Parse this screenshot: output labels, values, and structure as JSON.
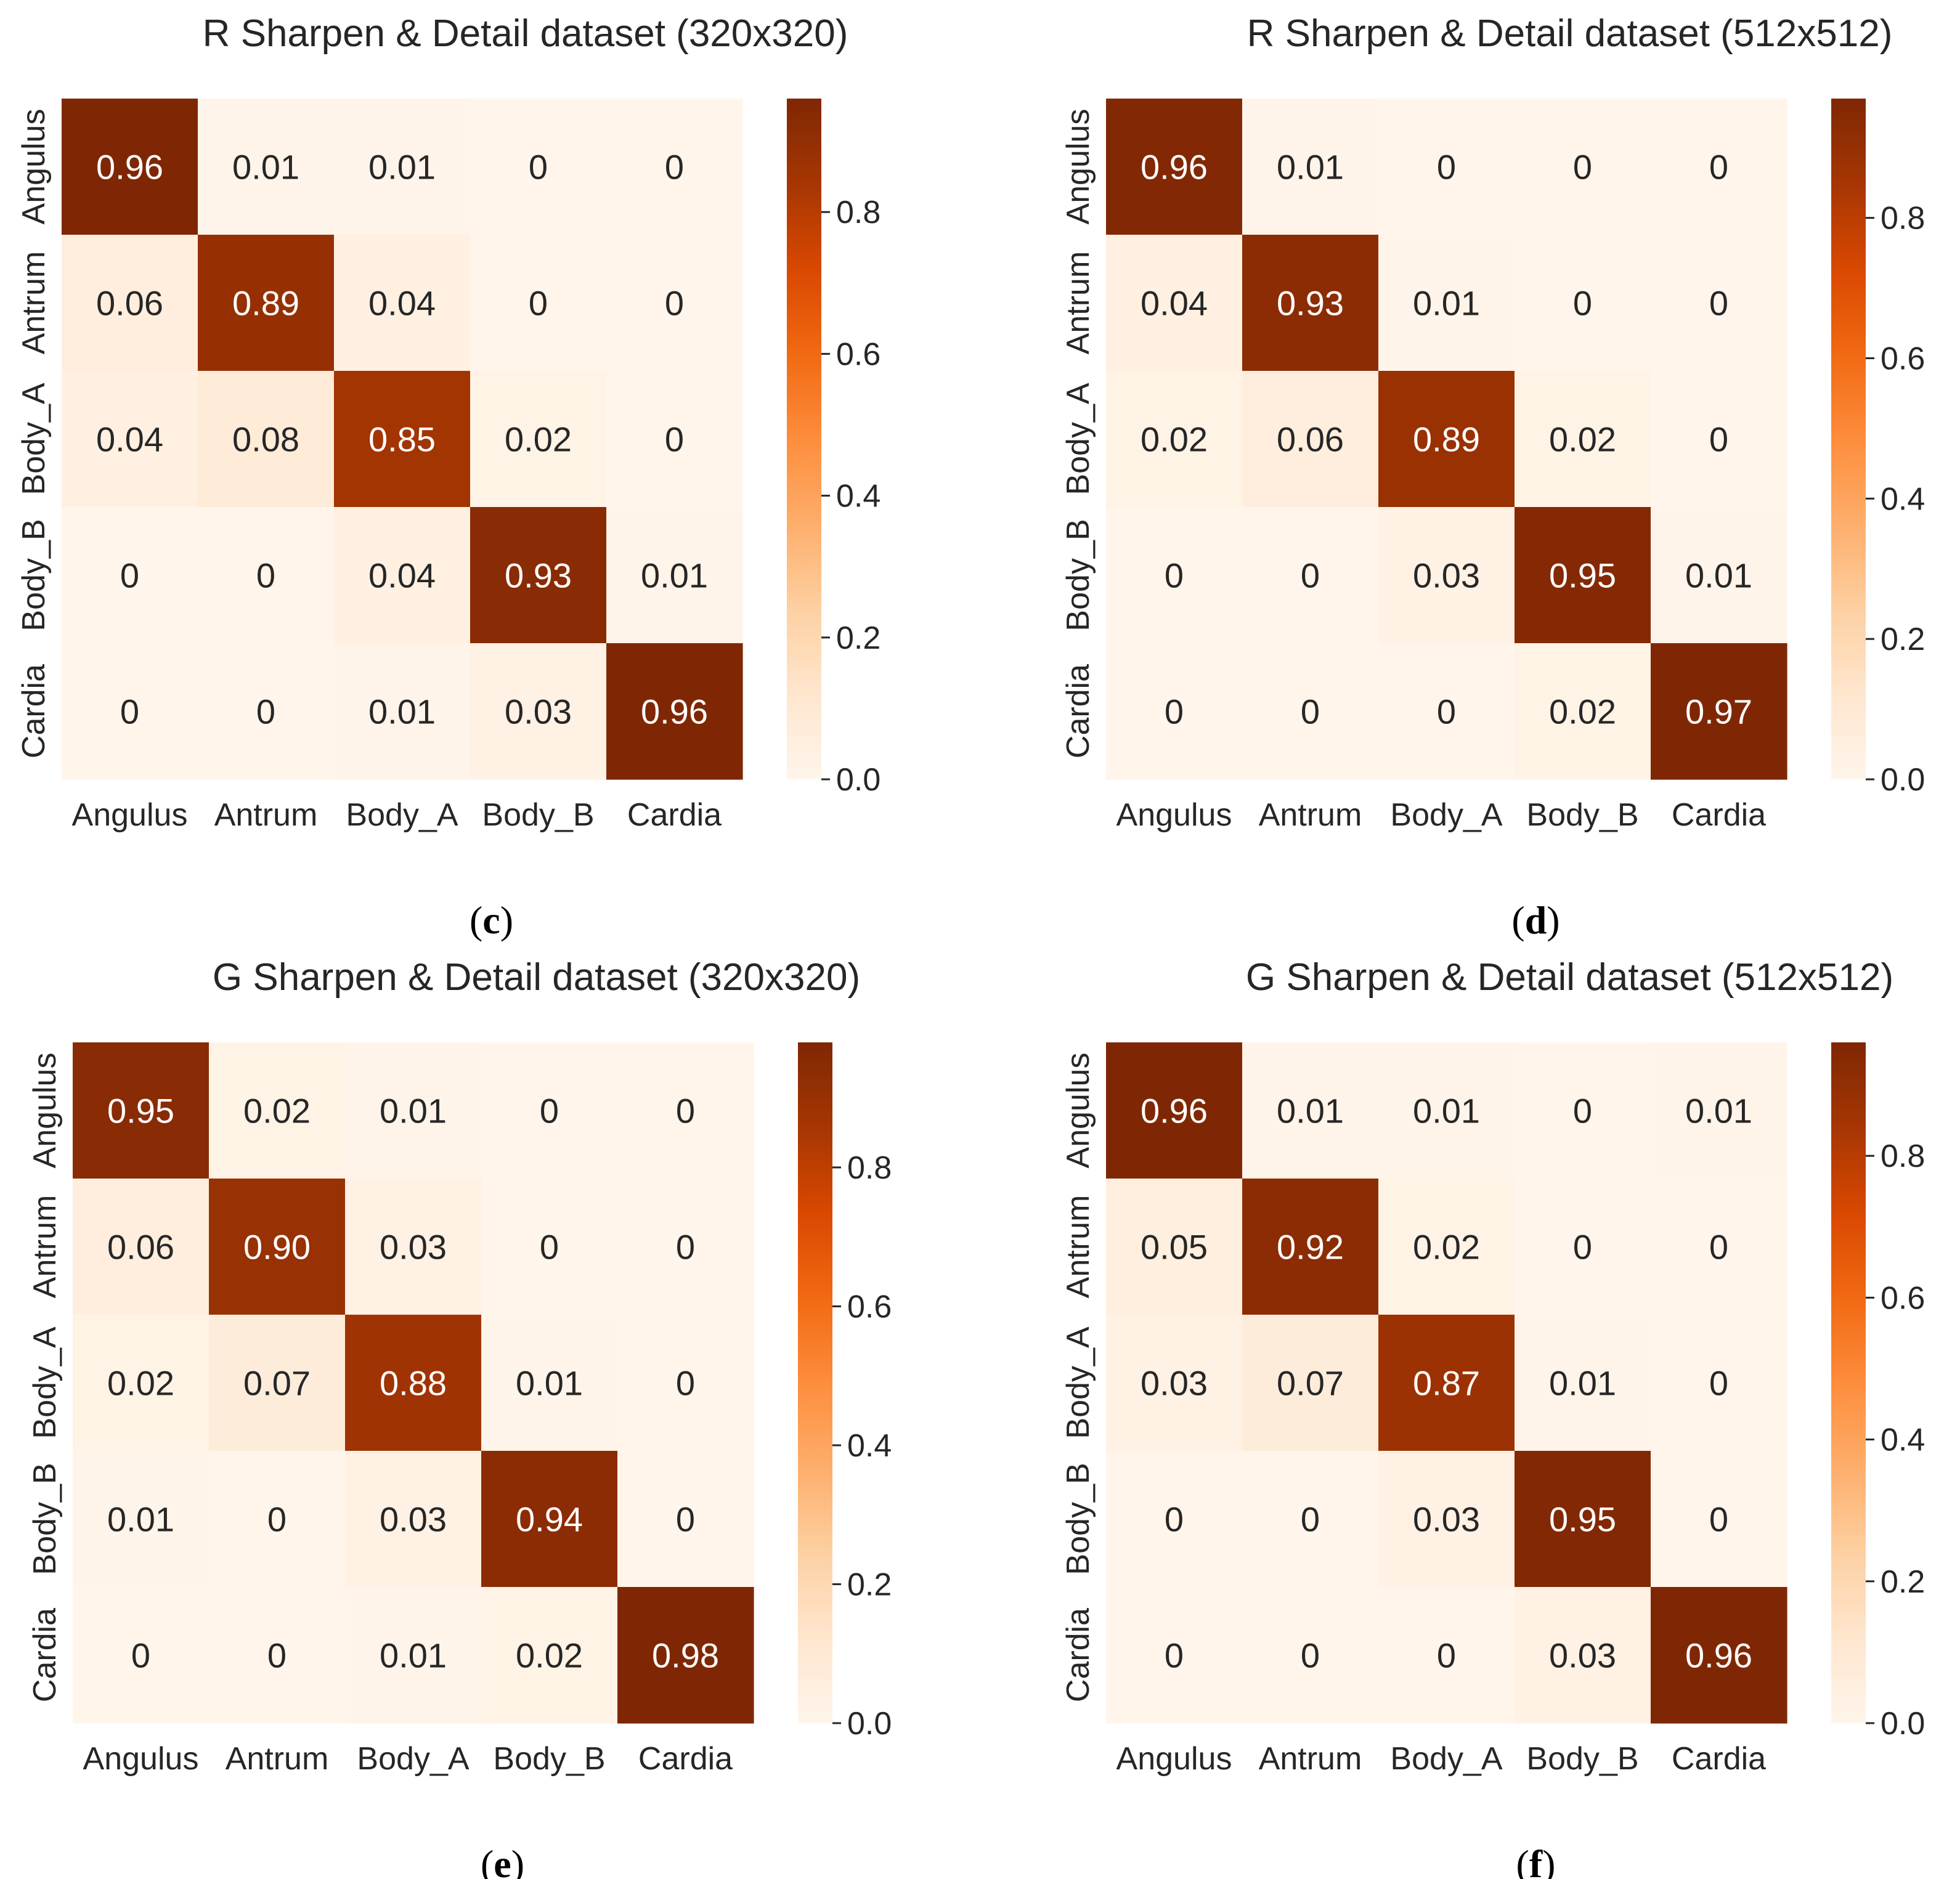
{
  "chart_data": [
    {
      "type": "heatmap",
      "title": "R Sharpen & Detail dataset (320x320)",
      "caption_letter": "c",
      "row_labels": [
        "Angulus",
        "Antrum",
        "Body_A",
        "Body_B",
        "Cardia"
      ],
      "col_labels": [
        "Angulus",
        "Antrum",
        "Body_A",
        "Body_B",
        "Cardia"
      ],
      "values": [
        [
          "0.96",
          "0.01",
          "0.01",
          "0",
          "0"
        ],
        [
          "0.06",
          "0.89",
          "0.04",
          "0",
          "0"
        ],
        [
          "0.04",
          "0.08",
          "0.85",
          "0.02",
          "0"
        ],
        [
          "0",
          "0",
          "0.04",
          "0.93",
          "0.01"
        ],
        [
          "0",
          "0",
          "0.01",
          "0.03",
          "0.96"
        ]
      ],
      "colorbar": {
        "min": 0.0,
        "max": 0.96,
        "ticks": [
          "0.0",
          "0.2",
          "0.4",
          "0.6",
          "0.8"
        ]
      }
    },
    {
      "type": "heatmap",
      "title": "R Sharpen & Detail dataset (512x512)",
      "caption_letter": "d",
      "row_labels": [
        "Angulus",
        "Antrum",
        "Body_A",
        "Body_B",
        "Cardia"
      ],
      "col_labels": [
        "Angulus",
        "Antrum",
        "Body_A",
        "Body_B",
        "Cardia"
      ],
      "values": [
        [
          "0.96",
          "0.01",
          "0",
          "0",
          "0"
        ],
        [
          "0.04",
          "0.93",
          "0.01",
          "0",
          "0"
        ],
        [
          "0.02",
          "0.06",
          "0.89",
          "0.02",
          "0"
        ],
        [
          "0",
          "0",
          "0.03",
          "0.95",
          "0.01"
        ],
        [
          "0",
          "0",
          "0",
          "0.02",
          "0.97"
        ]
      ],
      "colorbar": {
        "min": 0.0,
        "max": 0.97,
        "ticks": [
          "0.0",
          "0.2",
          "0.4",
          "0.6",
          "0.8"
        ]
      }
    },
    {
      "type": "heatmap",
      "title": "G Sharpen & Detail dataset (320x320)",
      "caption_letter": "e",
      "row_labels": [
        "Angulus",
        "Antrum",
        "Body_A",
        "Body_B",
        "Cardia"
      ],
      "col_labels": [
        "Angulus",
        "Antrum",
        "Body_A",
        "Body_B",
        "Cardia"
      ],
      "values": [
        [
          "0.95",
          "0.02",
          "0.01",
          "0",
          "0"
        ],
        [
          "0.06",
          "0.90",
          "0.03",
          "0",
          "0"
        ],
        [
          "0.02",
          "0.07",
          "0.88",
          "0.01",
          "0"
        ],
        [
          "0.01",
          "0",
          "0.03",
          "0.94",
          "0"
        ],
        [
          "0",
          "0",
          "0.01",
          "0.02",
          "0.98"
        ]
      ],
      "colorbar": {
        "min": 0.0,
        "max": 0.98,
        "ticks": [
          "0.0",
          "0.2",
          "0.4",
          "0.6",
          "0.8"
        ]
      }
    },
    {
      "type": "heatmap",
      "title": "G Sharpen & Detail dataset (512x512)",
      "caption_letter": "f",
      "row_labels": [
        "Angulus",
        "Antrum",
        "Body_A",
        "Body_B",
        "Cardia"
      ],
      "col_labels": [
        "Angulus",
        "Antrum",
        "Body_A",
        "Body_B",
        "Cardia"
      ],
      "values": [
        [
          "0.96",
          "0.01",
          "0.01",
          "0",
          "0.01"
        ],
        [
          "0.05",
          "0.92",
          "0.02",
          "0",
          "0"
        ],
        [
          "0.03",
          "0.07",
          "0.87",
          "0.01",
          "0"
        ],
        [
          "0",
          "0",
          "0.03",
          "0.95",
          "0"
        ],
        [
          "0",
          "0",
          "0",
          "0.03",
          "0.96"
        ]
      ],
      "colorbar": {
        "min": 0.0,
        "max": 0.96,
        "ticks": [
          "0.0",
          "0.2",
          "0.4",
          "0.6",
          "0.8"
        ]
      }
    }
  ],
  "colormap": {
    "name": "Oranges",
    "stops": [
      "#fff5eb",
      "#fee6ce",
      "#fdd0a2",
      "#fdae6b",
      "#fd8d3c",
      "#f16913",
      "#d94801",
      "#a63603",
      "#7f2704"
    ]
  }
}
